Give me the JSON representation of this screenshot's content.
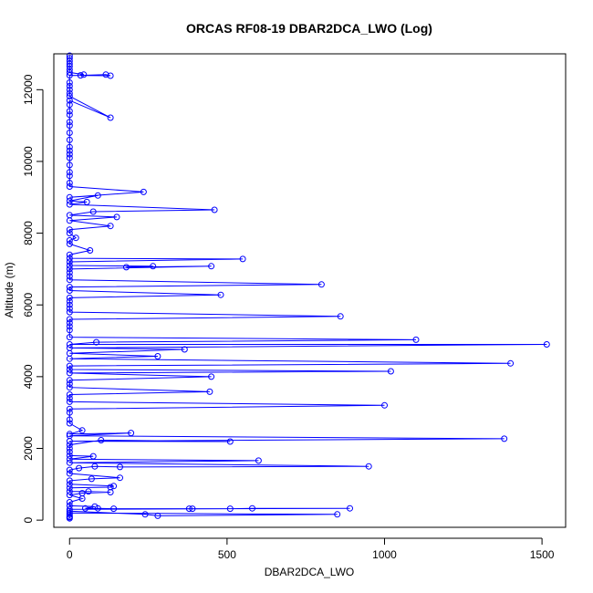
{
  "chart_data": {
    "type": "line",
    "title": "ORCAS RF08-19 DBAR2DCA_LWO (Log)",
    "xlabel": "DBAR2DCA_LWO",
    "ylabel": "Altitude (m)",
    "xlim": [
      -50,
      1575
    ],
    "ylim": [
      -200,
      13000
    ],
    "xticks": [
      0,
      500,
      1000,
      1500
    ],
    "yticks": [
      0,
      2000,
      4000,
      6000,
      8000,
      10000,
      12000
    ],
    "grid": false,
    "legend": "none",
    "series_color": "#0000ff",
    "points": [
      [
        0,
        12950
      ],
      [
        0,
        12880
      ],
      [
        0,
        12800
      ],
      [
        0,
        12720
      ],
      [
        0,
        12650
      ],
      [
        0,
        12560
      ],
      [
        0,
        12480
      ],
      [
        45,
        12420
      ],
      [
        35,
        12400
      ],
      [
        115,
        12420
      ],
      [
        130,
        12390
      ],
      [
        0,
        12400
      ],
      [
        0,
        12200
      ],
      [
        0,
        12100
      ],
      [
        0,
        12000
      ],
      [
        0,
        11900
      ],
      [
        0,
        11820
      ],
      [
        130,
        11220
      ],
      [
        0,
        11700
      ],
      [
        0,
        11580
      ],
      [
        0,
        11400
      ],
      [
        0,
        11300
      ],
      [
        0,
        11100
      ],
      [
        0,
        11000
      ],
      [
        0,
        10800
      ],
      [
        0,
        10600
      ],
      [
        0,
        10400
      ],
      [
        0,
        10300
      ],
      [
        0,
        10200
      ],
      [
        0,
        10100
      ],
      [
        0,
        9900
      ],
      [
        0,
        9700
      ],
      [
        0,
        9600
      ],
      [
        0,
        9400
      ],
      [
        0,
        9300
      ],
      [
        235,
        9150
      ],
      [
        0,
        9000
      ],
      [
        90,
        9050
      ],
      [
        0,
        8900
      ],
      [
        55,
        8870
      ],
      [
        0,
        8800
      ],
      [
        460,
        8650
      ],
      [
        75,
        8600
      ],
      [
        0,
        8500
      ],
      [
        150,
        8450
      ],
      [
        0,
        8350
      ],
      [
        130,
        8200
      ],
      [
        0,
        8100
      ],
      [
        0,
        8000
      ],
      [
        20,
        7870
      ],
      [
        0,
        7800
      ],
      [
        0,
        7700
      ],
      [
        65,
        7520
      ],
      [
        0,
        7400
      ],
      [
        0,
        7300
      ],
      [
        550,
        7280
      ],
      [
        0,
        7200
      ],
      [
        0,
        7100
      ],
      [
        265,
        7080
      ],
      [
        180,
        7050
      ],
      [
        450,
        7080
      ],
      [
        0,
        7000
      ],
      [
        0,
        6900
      ],
      [
        0,
        6800
      ],
      [
        0,
        6700
      ],
      [
        800,
        6570
      ],
      [
        0,
        6500
      ],
      [
        0,
        6400
      ],
      [
        480,
        6280
      ],
      [
        0,
        6200
      ],
      [
        0,
        6100
      ],
      [
        0,
        6000
      ],
      [
        0,
        5900
      ],
      [
        0,
        5800
      ],
      [
        860,
        5680
      ],
      [
        0,
        5600
      ],
      [
        0,
        5500
      ],
      [
        0,
        5400
      ],
      [
        0,
        5300
      ],
      [
        0,
        5100
      ],
      [
        1100,
        5030
      ],
      [
        85,
        4960
      ],
      [
        0,
        4900
      ],
      [
        1515,
        4900
      ],
      [
        0,
        4800
      ],
      [
        365,
        4760
      ],
      [
        0,
        4650
      ],
      [
        280,
        4570
      ],
      [
        0,
        4500
      ],
      [
        1400,
        4370
      ],
      [
        0,
        4300
      ],
      [
        0,
        4200
      ],
      [
        1020,
        4150
      ],
      [
        0,
        4100
      ],
      [
        450,
        4000
      ],
      [
        0,
        3900
      ],
      [
        0,
        3800
      ],
      [
        0,
        3700
      ],
      [
        445,
        3580
      ],
      [
        0,
        3500
      ],
      [
        0,
        3400
      ],
      [
        0,
        3300
      ],
      [
        1000,
        3200
      ],
      [
        0,
        3100
      ],
      [
        0,
        3000
      ],
      [
        0,
        2800
      ],
      [
        0,
        2700
      ],
      [
        40,
        2500
      ],
      [
        0,
        2400
      ],
      [
        195,
        2430
      ],
      [
        0,
        2350
      ],
      [
        1380,
        2270
      ],
      [
        0,
        2200
      ],
      [
        510,
        2190
      ],
      [
        100,
        2230
      ],
      [
        0,
        2100
      ],
      [
        0,
        2000
      ],
      [
        0,
        1900
      ],
      [
        0,
        1800
      ],
      [
        75,
        1780
      ],
      [
        0,
        1700
      ],
      [
        600,
        1660
      ],
      [
        0,
        1600
      ],
      [
        950,
        1500
      ],
      [
        160,
        1480
      ],
      [
        80,
        1500
      ],
      [
        30,
        1450
      ],
      [
        0,
        1400
      ],
      [
        0,
        1300
      ],
      [
        160,
        1180
      ],
      [
        70,
        1150
      ],
      [
        0,
        1100
      ],
      [
        0,
        1000
      ],
      [
        140,
        950
      ],
      [
        130,
        920
      ],
      [
        0,
        900
      ],
      [
        0,
        800
      ],
      [
        60,
        800
      ],
      [
        130,
        780
      ],
      [
        40,
        750
      ],
      [
        0,
        700
      ],
      [
        40,
        600
      ],
      [
        0,
        500
      ],
      [
        0,
        400
      ],
      [
        80,
        380
      ],
      [
        50,
        330
      ],
      [
        90,
        330
      ],
      [
        140,
        320
      ],
      [
        390,
        320
      ],
      [
        380,
        320
      ],
      [
        510,
        320
      ],
      [
        580,
        330
      ],
      [
        890,
        330
      ],
      [
        0,
        300
      ],
      [
        0,
        250
      ],
      [
        240,
        160
      ],
      [
        280,
        120
      ],
      [
        850,
        160
      ],
      [
        0,
        200
      ],
      [
        0,
        150
      ],
      [
        0,
        100
      ],
      [
        0,
        80
      ],
      [
        0,
        50
      ]
    ]
  }
}
